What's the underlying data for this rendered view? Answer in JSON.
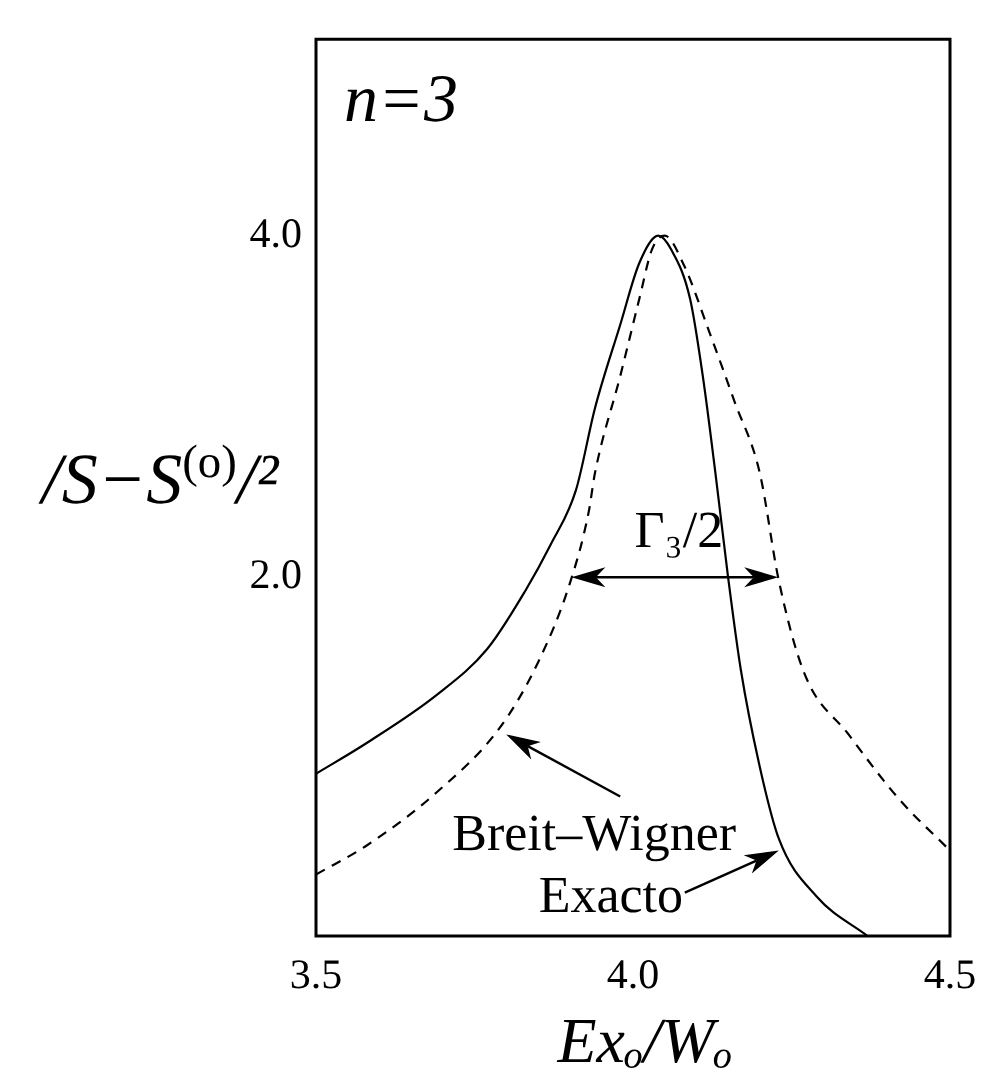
{
  "chart_data": {
    "type": "line",
    "annotations": [
      "n=3",
      "Γ₃/2",
      {
        "text": "Breit–Wigner",
        "x": 3.8,
        "y": 1.08
      },
      {
        "text": "Exacto",
        "x": 4.23,
        "y": 0.4
      }
    ],
    "xlabel": "Exₒ/Wₒ",
    "ylabel": "/S−S$^{(o)}$/²",
    "xlim": [
      3.5,
      4.5
    ],
    "xticks": [
      3.5,
      {
        "value": 4,
        "label": "4.0"
      },
      4.5
    ],
    "ylim": [
      -0.1,
      5.15
    ],
    "yticks": [
      {
        "value": 2,
        "label": "2.0"
      },
      {
        "value": 4,
        "label": "4.0"
      }
    ],
    "marker": "none",
    "series": [
      {
        "color": "#000000",
        "line_style": "dashed",
        "x": [
          3.5,
          3.58,
          3.69,
          3.79,
          3.85,
          3.9,
          3.93,
          3.94,
          3.98,
          4.01,
          4.03,
          4.05,
          4.08,
          4.12,
          4.16,
          4.2,
          4.23,
          4.27,
          4.34,
          4.42,
          4.5
        ],
        "values": [
          0.26,
          0.43,
          0.74,
          1.12,
          1.5,
          1.96,
          2.38,
          2.61,
          3.18,
          3.63,
          3.92,
          4.0,
          3.83,
          3.44,
          3.03,
          2.61,
          1.98,
          1.44,
          1.08,
          0.7,
          0.4
        ]
      },
      {
        "color": "#000000",
        "line_style": "solid",
        "x": [
          3.5,
          3.58,
          3.69,
          3.77,
          3.83,
          3.87,
          3.91,
          3.94,
          3.98,
          4.01,
          4.04,
          4.06,
          4.09,
          4.11,
          4.13,
          4.15,
          4.17,
          4.2,
          4.23,
          4.29,
          4.37
        ],
        "values": [
          0.85,
          1.03,
          1.31,
          1.58,
          1.92,
          2.19,
          2.51,
          2.99,
          3.48,
          3.84,
          4.0,
          3.92,
          3.63,
          3.18,
          2.61,
          2.0,
          1.46,
          0.89,
          0.47,
          0.13,
          -0.1
        ]
      }
    ]
  }
}
